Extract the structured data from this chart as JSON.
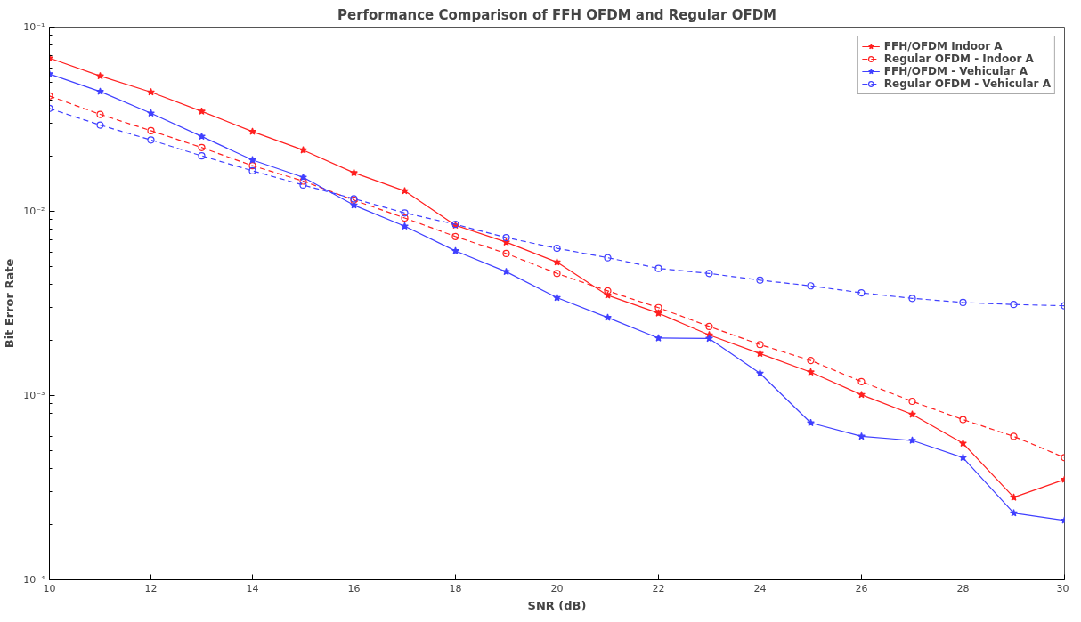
{
  "chart_data": {
    "type": "line",
    "title": "Performance Comparison of FFH OFDM and Regular OFDM",
    "xlabel": "SNR (dB)",
    "ylabel": "Bit Error Rate",
    "log": "y",
    "grid": false,
    "legend": "top right",
    "x": [
      10,
      11,
      12,
      13,
      14,
      15,
      16,
      17,
      18,
      19,
      20,
      21,
      22,
      23,
      24,
      25,
      26,
      27,
      28,
      29,
      30
    ],
    "xlim": [
      10,
      30
    ],
    "xticks": [
      10,
      12,
      14,
      16,
      18,
      20,
      22,
      24,
      26,
      28,
      30
    ],
    "ylim": [
      0.0001,
      0.1
    ],
    "yticks": [
      {
        "value": 0.0001,
        "label": "10⁻⁴"
      },
      {
        "value": 0.0002,
        "label": null
      },
      {
        "value": 0.0003,
        "label": null
      },
      {
        "value": 0.0004,
        "label": null
      },
      {
        "value": 0.0005,
        "label": null
      },
      {
        "value": 0.0006,
        "label": null
      },
      {
        "value": 0.0007,
        "label": null
      },
      {
        "value": 0.0008,
        "label": null
      },
      {
        "value": 0.0009,
        "label": null
      },
      {
        "value": 0.001,
        "label": "10⁻³"
      },
      {
        "value": 0.002,
        "label": null
      },
      {
        "value": 0.003,
        "label": null
      },
      {
        "value": 0.004,
        "label": null
      },
      {
        "value": 0.005,
        "label": null
      },
      {
        "value": 0.006,
        "label": null
      },
      {
        "value": 0.007,
        "label": null
      },
      {
        "value": 0.008,
        "label": null
      },
      {
        "value": 0.009,
        "label": null
      },
      {
        "value": 0.01,
        "label": "10⁻²"
      },
      {
        "value": 0.02,
        "label": null
      },
      {
        "value": 0.03,
        "label": null
      },
      {
        "value": 0.04,
        "label": null
      },
      {
        "value": 0.05,
        "label": null
      },
      {
        "value": 0.06,
        "label": null
      },
      {
        "value": 0.07,
        "label": null
      },
      {
        "value": 0.08,
        "label": null
      },
      {
        "value": 0.09,
        "label": null
      },
      {
        "value": 0.1,
        "label": "10⁻¹"
      }
    ],
    "series": [
      {
        "name": "FFH/OFDM Indoor A",
        "color": "#ff2020",
        "marker": "star",
        "line_style": "solid",
        "values": [
          0.0679,
          0.0543,
          0.0444,
          0.0349,
          0.0271,
          0.0215,
          0.0162,
          0.0129,
          0.0084,
          0.0068,
          0.0053,
          0.0035,
          0.0028,
          0.00213,
          0.00169,
          0.00134,
          0.00101,
          0.00079,
          0.00055,
          0.00028,
          0.00035
        ]
      },
      {
        "name": "Regular OFDM - Indoor A",
        "color": "#ff2020",
        "marker": "circle",
        "line_style": "dashed",
        "values": [
          0.0423,
          0.0336,
          0.0274,
          0.0222,
          0.0177,
          0.0146,
          0.0115,
          0.0092,
          0.0073,
          0.0059,
          0.0046,
          0.0037,
          0.003,
          0.00237,
          0.00189,
          0.00155,
          0.00119,
          0.00093,
          0.00074,
          0.0006,
          0.00046
        ]
      },
      {
        "name": "FFH/OFDM - Vehicular A",
        "color": "#4040ff",
        "marker": "star",
        "line_style": "solid",
        "values": [
          0.0557,
          0.0447,
          0.0341,
          0.0255,
          0.019,
          0.0153,
          0.0108,
          0.0083,
          0.0061,
          0.0047,
          0.0034,
          0.00265,
          0.00205,
          0.00204,
          0.00132,
          0.00071,
          0.0006,
          0.00057,
          0.00046,
          0.00023,
          0.00021
        ]
      },
      {
        "name": "Regular OFDM - Vehicular A",
        "color": "#4040ff",
        "marker": "circle",
        "line_style": "dashed",
        "values": [
          0.0362,
          0.0294,
          0.0244,
          0.02,
          0.0166,
          0.0139,
          0.0117,
          0.0098,
          0.0085,
          0.0072,
          0.0063,
          0.0056,
          0.0049,
          0.0046,
          0.00423,
          0.00394,
          0.00361,
          0.00337,
          0.0032,
          0.00312,
          0.00307
        ]
      }
    ]
  }
}
